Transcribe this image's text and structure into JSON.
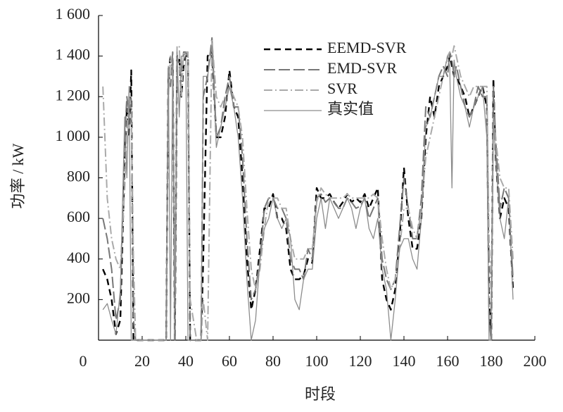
{
  "chart_data": {
    "type": "line",
    "xlabel": "时段",
    "ylabel": "功率 / kW",
    "xlim": [
      0,
      200
    ],
    "xticks": [
      0,
      20,
      40,
      60,
      80,
      100,
      120,
      140,
      160,
      180,
      200
    ],
    "ylim": [
      0,
      1600
    ],
    "yticks": [
      200,
      400,
      600,
      800,
      {
        "value": 1000,
        "label": "1 000"
      },
      {
        "value": 1200,
        "label": "1 200"
      },
      {
        "value": 1400,
        "label": "1 400"
      },
      {
        "value": 1600,
        "label": "1 600"
      }
    ],
    "grid": false,
    "legend": "top",
    "x": [
      2,
      4,
      6,
      8,
      10,
      12,
      13,
      14,
      15,
      16,
      17,
      20,
      25,
      30,
      31,
      32,
      33,
      34,
      35,
      36,
      37,
      38,
      39,
      40,
      41,
      42,
      45,
      47,
      48,
      50,
      52,
      54,
      56,
      58,
      60,
      62,
      64,
      66,
      68,
      70,
      72,
      74,
      76,
      78,
      80,
      82,
      84,
      86,
      88,
      90,
      92,
      94,
      96,
      98,
      100,
      102,
      104,
      106,
      108,
      110,
      112,
      114,
      116,
      118,
      120,
      122,
      124,
      126,
      128,
      130,
      132,
      134,
      136,
      138,
      140,
      142,
      144,
      146,
      148,
      150,
      152,
      154,
      156,
      158,
      160,
      161,
      162,
      163,
      164,
      166,
      168,
      170,
      172,
      174,
      176,
      178,
      179,
      180,
      181,
      182,
      184,
      186,
      188,
      190
    ],
    "series": [
      {
        "name": "EEMD-SVR",
        "color": "#000000",
        "linestyle": "dashed",
        "values": [
          350,
          300,
          200,
          30,
          100,
          900,
          1150,
          1000,
          1330,
          0,
          0,
          0,
          0,
          0,
          0,
          1300,
          1400,
          1380,
          0,
          1400,
          1400,
          1200,
          1350,
          1400,
          1400,
          0,
          0,
          0,
          400,
          1400,
          1420,
          1000,
          1000,
          1100,
          1330,
          1150,
          1100,
          800,
          400,
          150,
          250,
          450,
          650,
          650,
          720,
          600,
          600,
          550,
          350,
          300,
          300,
          320,
          400,
          380,
          750,
          700,
          700,
          720,
          680,
          650,
          680,
          720,
          680,
          700,
          680,
          720,
          650,
          700,
          750,
          300,
          200,
          150,
          250,
          500,
          850,
          600,
          450,
          450,
          600,
          1000,
          1200,
          1100,
          1250,
          1300,
          1350,
          1400,
          1350,
          1300,
          1300,
          1250,
          1200,
          1100,
          1150,
          1200,
          1250,
          1150,
          200,
          0,
          1290,
          900,
          600,
          700,
          650,
          250
        ]
      },
      {
        "name": "EMD-SVR",
        "color": "#777777",
        "linestyle": "longdash",
        "values": [
          600,
          500,
          350,
          100,
          200,
          1000,
          1200,
          1100,
          1200,
          100,
          0,
          0,
          0,
          0,
          0,
          1350,
          1250,
          1420,
          0,
          1400,
          1350,
          1300,
          1420,
          1420,
          1400,
          0,
          0,
          0,
          1200,
          1300,
          1490,
          1000,
          1050,
          1200,
          1300,
          1150,
          1150,
          900,
          500,
          200,
          250,
          400,
          650,
          700,
          700,
          650,
          650,
          600,
          400,
          350,
          350,
          300,
          450,
          400,
          700,
          720,
          680,
          700,
          680,
          650,
          650,
          700,
          680,
          650,
          660,
          700,
          600,
          650,
          700,
          400,
          300,
          250,
          300,
          550,
          800,
          650,
          500,
          500,
          700,
          1150,
          1100,
          1200,
          1300,
          1350,
          1300,
          1420,
          1380,
          1300,
          1350,
          1250,
          1150,
          1100,
          1150,
          1250,
          1200,
          1200,
          100,
          0,
          1250,
          1000,
          650,
          750,
          700,
          300
        ]
      },
      {
        "name": "SVR",
        "color": "#aaaaaa",
        "linestyle": "dashdot",
        "values": [
          1250,
          700,
          500,
          400,
          350,
          750,
          1050,
          1200,
          1150,
          400,
          0,
          0,
          0,
          0,
          0,
          1200,
          1400,
          1300,
          300,
          1450,
          1450,
          1200,
          1420,
          1420,
          1420,
          200,
          0,
          0,
          200,
          0,
          1480,
          1200,
          1150,
          1200,
          1250,
          1200,
          1150,
          1000,
          650,
          350,
          250,
          350,
          550,
          700,
          700,
          700,
          650,
          650,
          500,
          400,
          400,
          400,
          450,
          450,
          680,
          750,
          720,
          700,
          700,
          700,
          700,
          720,
          700,
          700,
          700,
          700,
          700,
          720,
          700,
          500,
          350,
          250,
          300,
          450,
          650,
          650,
          550,
          500,
          650,
          900,
          1000,
          1100,
          1200,
          1300,
          1400,
          1420,
          1400,
          1450,
          1400,
          1300,
          1250,
          1200,
          1250,
          1250,
          1250,
          1250,
          500,
          200,
          1100,
          1000,
          800,
          750,
          750,
          400
        ]
      },
      {
        "name": "真实值",
        "color": "#8c8c8c",
        "linestyle": "solid",
        "values": [
          150,
          180,
          100,
          30,
          250,
          1100,
          800,
          1250,
          0,
          0,
          0,
          0,
          0,
          0,
          0,
          1350,
          0,
          1400,
          0,
          1420,
          1100,
          1400,
          1400,
          1420,
          0,
          0,
          0,
          0,
          1300,
          1300,
          1450,
          950,
          1050,
          1150,
          1250,
          1150,
          1000,
          700,
          300,
          0,
          100,
          400,
          550,
          600,
          700,
          600,
          550,
          600,
          500,
          200,
          150,
          300,
          350,
          350,
          600,
          700,
          550,
          700,
          650,
          600,
          650,
          700,
          650,
          550,
          650,
          700,
          550,
          500,
          600,
          350,
          250,
          0,
          200,
          450,
          500,
          500,
          400,
          350,
          600,
          1050,
          1100,
          1200,
          1300,
          1300,
          1400,
          1350,
          750,
          1380,
          1300,
          1200,
          1150,
          1050,
          1150,
          1200,
          1250,
          1000,
          0,
          0,
          1100,
          900,
          600,
          500,
          700,
          200
        ]
      }
    ]
  }
}
